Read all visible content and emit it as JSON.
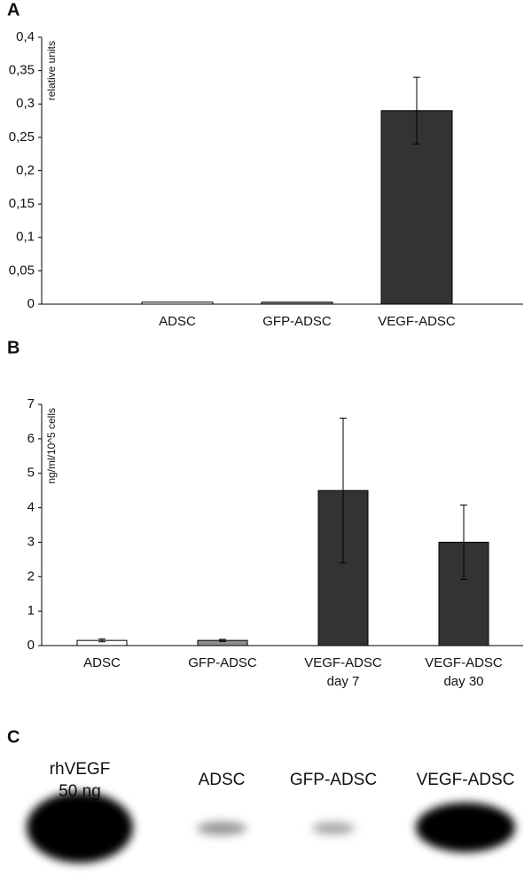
{
  "chart_data": [
    {
      "type": "bar",
      "panel_label": "A",
      "y_label": "relative units",
      "categories": [
        "ADSC",
        "GFP-ADSC",
        "VEGF-ADSC"
      ],
      "values": [
        0.003,
        0.003,
        0.29
      ],
      "errors": [
        0,
        0,
        0.05
      ],
      "colors": [
        "#ffffff",
        "#8c8c8c",
        "#333333"
      ],
      "ylim": [
        0,
        0.4
      ],
      "yticks": [
        0,
        {
          "value": 0.05,
          "label": "0,05"
        },
        {
          "value": 0.1,
          "label": "0,1"
        },
        {
          "value": 0.15,
          "label": "0,15"
        },
        {
          "value": 0.2,
          "label": "0,2"
        },
        {
          "value": 0.25,
          "label": "0,25"
        },
        {
          "value": 0.3,
          "label": "0,3"
        },
        {
          "value": 0.35,
          "label": "0,35"
        },
        {
          "value": 0.4,
          "label": "0,4"
        }
      ],
      "grid": false
    },
    {
      "type": "bar",
      "panel_label": "B",
      "y_label": "ng/ml/10^5 cells",
      "categories": [
        "ADSC",
        "GFP-ADSC",
        [
          "VEGF-ADSC",
          "day 7"
        ],
        [
          "VEGF-ADSC",
          "day 30"
        ]
      ],
      "values": [
        0.15,
        0.15,
        4.5,
        3.0
      ],
      "errors": [
        0.04,
        0.03,
        2.1,
        1.08
      ],
      "colors": [
        "#ffffff",
        "#8c8c8c",
        "#333333",
        "#333333"
      ],
      "ylim": [
        0,
        7
      ],
      "yticks": [
        0,
        1,
        2,
        3,
        4,
        5,
        6,
        7
      ],
      "grid": false
    }
  ],
  "panel_c": {
    "panel_label": "C",
    "lanes": [
      [
        "rhVEGF",
        "50 ng"
      ],
      "ADSC",
      "GFP-ADSC",
      "VEGF-ADSC"
    ]
  }
}
